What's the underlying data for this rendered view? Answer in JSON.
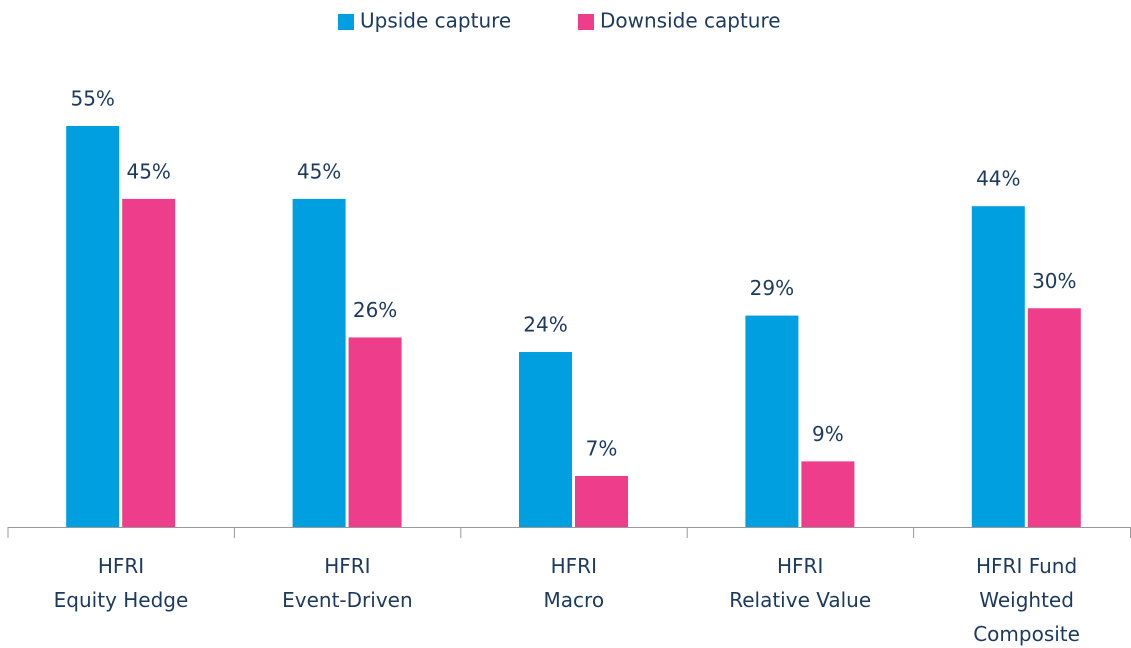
{
  "chart_data": {
    "type": "bar",
    "categories": [
      "HFRI\nEquity Hedge",
      "HFRI\nEvent-Driven",
      "HFRI\nMacro",
      "HFRI\nRelative Value",
      "HFRI Fund\nWeighted\nComposite"
    ],
    "series": [
      {
        "name": "Upside capture",
        "color": "#009fdf",
        "values": [
          55,
          45,
          24,
          29,
          44
        ],
        "value_labels": [
          "55%",
          "45%",
          "24%",
          "29%",
          "44%"
        ]
      },
      {
        "name": "Downside capture",
        "color": "#ee3d8b",
        "values": [
          45,
          26,
          7,
          9,
          30
        ],
        "value_labels": [
          "45%",
          "26%",
          "7%",
          "9%",
          "30%"
        ]
      }
    ],
    "legend": "top"
  }
}
